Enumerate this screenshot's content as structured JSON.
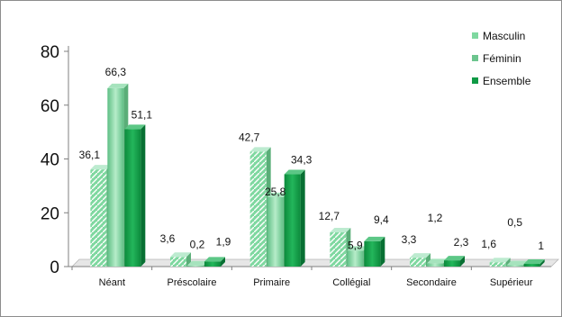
{
  "chart_data": {
    "type": "bar",
    "title": "",
    "xlabel": "",
    "ylabel": "",
    "categories": [
      "Néant",
      "Préscolaire",
      "Primaire",
      "Collégial",
      "Secondaire",
      "Supérieur"
    ],
    "series": [
      {
        "name": "Masculin",
        "values": [
          36.1,
          3.6,
          42.7,
          12.7,
          3.3,
          1.6
        ],
        "labels": [
          "36,1",
          "3,6",
          "42,7",
          "12,7",
          "3,3",
          "1,6"
        ],
        "color": "#7fd8a0"
      },
      {
        "name": "Féminin",
        "values": [
          66.3,
          0.2,
          25.8,
          5.9,
          1.2,
          0.5
        ],
        "labels": [
          "66,3",
          "0,2",
          "25,8",
          "5,9",
          "1,2",
          "0,5"
        ],
        "color": "#6cc58e"
      },
      {
        "name": "Ensemble",
        "values": [
          51.1,
          1.9,
          34.3,
          9.4,
          2.3,
          1.0
        ],
        "labels": [
          "51,1",
          "1,9",
          "34,3",
          "9,4",
          "2,3",
          "1"
        ],
        "color": "#0f9a45"
      }
    ],
    "ylim": [
      0,
      80
    ],
    "yticks": [
      0,
      20,
      40,
      60,
      80
    ],
    "grid": false,
    "legend": "top-right"
  }
}
